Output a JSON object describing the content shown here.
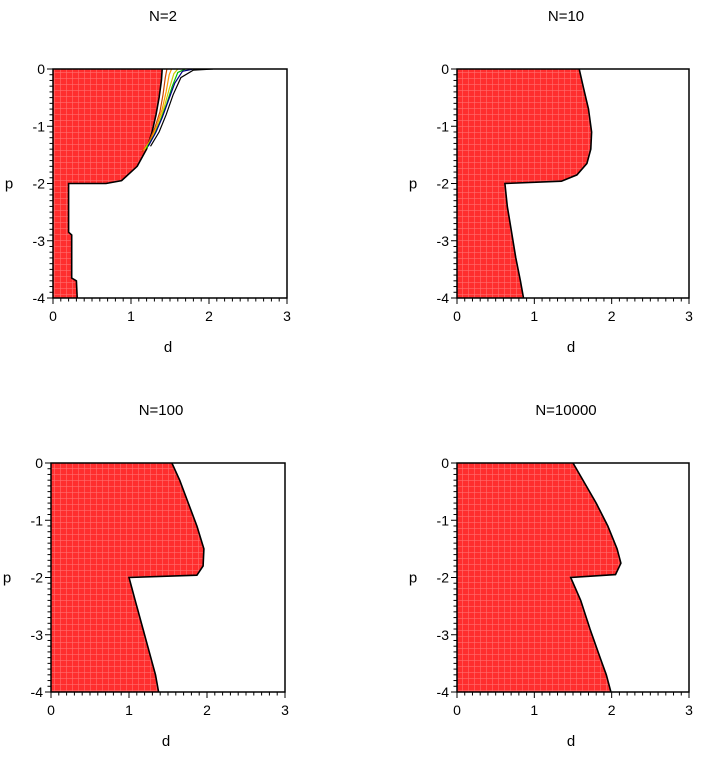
{
  "chart_data": [
    {
      "type": "area",
      "title": "N=2",
      "xlabel": "d",
      "ylabel": "p",
      "xlim": [
        0,
        3
      ],
      "ylim": [
        -4,
        0
      ],
      "xticks": [
        "0",
        "1",
        "2",
        "3"
      ],
      "yticks": [
        "0",
        "-1",
        "-2",
        "-3",
        "-4"
      ],
      "fill_color": "#ff2e2e",
      "grid_color": "#ff7070",
      "boundary": [
        [
          1.4,
          0
        ],
        [
          1.39,
          -0.2
        ],
        [
          1.36,
          -0.5
        ],
        [
          1.32,
          -0.8
        ],
        [
          1.27,
          -1.1
        ],
        [
          1.2,
          -1.4
        ],
        [
          1.08,
          -1.7
        ],
        [
          0.88,
          -1.95
        ],
        [
          0.68,
          -2.0
        ],
        [
          0.2,
          -2.0
        ],
        [
          0.2,
          -2.85
        ],
        [
          0.24,
          -2.9
        ],
        [
          0.24,
          -3.65
        ],
        [
          0.3,
          -3.7
        ],
        [
          0.31,
          -4
        ]
      ],
      "contours": [
        {
          "color": "#cc4400",
          "points": [
            [
              1.46,
              0
            ],
            [
              1.44,
              -0.15
            ],
            [
              1.41,
              -0.45
            ],
            [
              1.37,
              -0.75
            ],
            [
              1.3,
              -1.05
            ],
            [
              1.22,
              -1.3
            ],
            [
              1.14,
              -1.45
            ]
          ]
        },
        {
          "color": "#ff9900",
          "points": [
            [
              1.52,
              0
            ],
            [
              1.49,
              -0.1
            ],
            [
              1.45,
              -0.4
            ],
            [
              1.4,
              -0.7
            ],
            [
              1.33,
              -1.0
            ],
            [
              1.25,
              -1.25
            ],
            [
              1.16,
              -1.42
            ]
          ]
        },
        {
          "color": "#cccc00",
          "points": [
            [
              1.6,
              0
            ],
            [
              1.55,
              -0.08
            ],
            [
              1.49,
              -0.35
            ],
            [
              1.43,
              -0.65
            ],
            [
              1.36,
              -0.95
            ],
            [
              1.28,
              -1.2
            ],
            [
              1.18,
              -1.4
            ]
          ]
        },
        {
          "color": "#00bb00",
          "points": [
            [
              1.7,
              0
            ],
            [
              1.6,
              -0.06
            ],
            [
              1.53,
              -0.3
            ],
            [
              1.46,
              -0.6
            ],
            [
              1.38,
              -0.9
            ],
            [
              1.3,
              -1.15
            ],
            [
              1.2,
              -1.38
            ]
          ]
        },
        {
          "color": "#000080",
          "points": [
            [
              1.8,
              0
            ],
            [
              1.66,
              -0.04
            ],
            [
              1.56,
              -0.25
            ],
            [
              1.48,
              -0.55
            ],
            [
              1.4,
              -0.85
            ],
            [
              1.32,
              -1.1
            ],
            [
              1.22,
              -1.35
            ]
          ]
        },
        {
          "color": "#000000",
          "points": [
            [
              2.05,
              0
            ],
            [
              1.8,
              -0.02
            ],
            [
              1.64,
              -0.15
            ],
            [
              1.54,
              -0.45
            ],
            [
              1.45,
              -0.8
            ],
            [
              1.36,
              -1.1
            ],
            [
              1.25,
              -1.35
            ]
          ]
        }
      ]
    },
    {
      "type": "area",
      "title": "N=10",
      "xlabel": "d",
      "ylabel": "p",
      "xlim": [
        0,
        3
      ],
      "ylim": [
        -4,
        0
      ],
      "xticks": [
        "0",
        "1",
        "2",
        "3"
      ],
      "yticks": [
        "0",
        "-1",
        "-2",
        "-3",
        "-4"
      ],
      "fill_color": "#ff2e2e",
      "grid_color": "#ff7070",
      "boundary": [
        [
          1.58,
          0
        ],
        [
          1.63,
          -0.3
        ],
        [
          1.7,
          -0.7
        ],
        [
          1.74,
          -1.1
        ],
        [
          1.73,
          -1.4
        ],
        [
          1.68,
          -1.65
        ],
        [
          1.55,
          -1.85
        ],
        [
          1.35,
          -1.96
        ],
        [
          0.62,
          -2.0
        ],
        [
          0.65,
          -2.4
        ],
        [
          0.7,
          -2.8
        ],
        [
          0.76,
          -3.3
        ],
        [
          0.82,
          -3.7
        ],
        [
          0.86,
          -4
        ]
      ],
      "contours": []
    },
    {
      "type": "area",
      "title": "N=100",
      "xlabel": "d",
      "ylabel": "p",
      "xlim": [
        0,
        3
      ],
      "ylim": [
        -4,
        0
      ],
      "xticks": [
        "0",
        "1",
        "2",
        "3"
      ],
      "yticks": [
        "0",
        "-1",
        "-2",
        "-3",
        "-4"
      ],
      "fill_color": "#ff2e2e",
      "grid_color": "#ff7070",
      "boundary": [
        [
          1.55,
          0
        ],
        [
          1.65,
          -0.3
        ],
        [
          1.76,
          -0.7
        ],
        [
          1.87,
          -1.1
        ],
        [
          1.96,
          -1.5
        ],
        [
          1.95,
          -1.8
        ],
        [
          1.87,
          -1.96
        ],
        [
          1.0,
          -2.0
        ],
        [
          1.08,
          -2.4
        ],
        [
          1.18,
          -2.9
        ],
        [
          1.28,
          -3.4
        ],
        [
          1.34,
          -3.7
        ],
        [
          1.38,
          -4
        ]
      ],
      "contours": []
    },
    {
      "type": "area",
      "title": "N=10000",
      "xlabel": "d",
      "ylabel": "p",
      "xlim": [
        0,
        3
      ],
      "ylim": [
        -4,
        0
      ],
      "xticks": [
        "0",
        "1",
        "2",
        "3"
      ],
      "yticks": [
        "0",
        "-1",
        "-2",
        "-3",
        "-4"
      ],
      "fill_color": "#ff2e2e",
      "grid_color": "#ff7070",
      "boundary": [
        [
          1.5,
          0
        ],
        [
          1.65,
          -0.35
        ],
        [
          1.8,
          -0.7
        ],
        [
          1.95,
          -1.1
        ],
        [
          2.07,
          -1.5
        ],
        [
          2.12,
          -1.75
        ],
        [
          2.05,
          -1.95
        ],
        [
          1.47,
          -2.0
        ],
        [
          1.6,
          -2.4
        ],
        [
          1.72,
          -2.9
        ],
        [
          1.85,
          -3.4
        ],
        [
          1.93,
          -3.7
        ],
        [
          1.99,
          -4
        ]
      ],
      "contours": []
    }
  ]
}
